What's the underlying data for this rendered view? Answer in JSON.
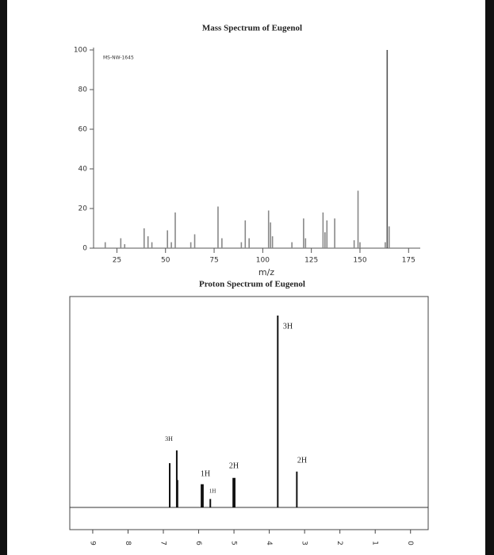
{
  "chart_data": [
    {
      "type": "bar",
      "title": "Mass Spectrum of Eugenol",
      "annotation": "MS-NW-1645",
      "x_label": "m/z",
      "x": [
        19,
        27,
        29,
        39,
        41,
        43,
        51,
        53,
        55,
        63,
        65,
        77,
        79,
        89,
        91,
        93,
        103,
        104,
        105,
        115,
        121,
        122,
        131,
        132,
        133,
        137,
        147,
        149,
        150,
        163,
        164,
        165
      ],
      "values": [
        3,
        5,
        2,
        10,
        6,
        3,
        9,
        3,
        18,
        3,
        7,
        21,
        5,
        3,
        14,
        5,
        19,
        13,
        6,
        3,
        15,
        5,
        18,
        8,
        14,
        15,
        4,
        29,
        3,
        3,
        100,
        11
      ],
      "color": "#888888",
      "xlim": [
        13,
        181
      ],
      "ylim": [
        0,
        100
      ],
      "xticks": [
        25,
        50,
        75,
        100,
        125,
        150,
        175
      ],
      "yticks": [
        0,
        20,
        40,
        60,
        80,
        100
      ]
    },
    {
      "type": "spectrum",
      "title": "Proton Spectrum of Eugenol",
      "x": [
        6.82,
        6.62,
        6.6,
        5.92,
        5.88,
        5.67,
        5.02,
        4.98,
        3.76,
        3.22
      ],
      "values": [
        21,
        27,
        13,
        11,
        11,
        4,
        14,
        14,
        91,
        17
      ],
      "color": "#111111",
      "xlim": [
        9.65,
        -0.5
      ],
      "ylim": [
        0,
        100
      ],
      "xticks": [
        9,
        8,
        7,
        6,
        5,
        4,
        3,
        2,
        1,
        0
      ],
      "annotations": [
        "3H",
        "1H",
        "1H",
        "2H",
        "3H",
        "2H"
      ]
    }
  ]
}
